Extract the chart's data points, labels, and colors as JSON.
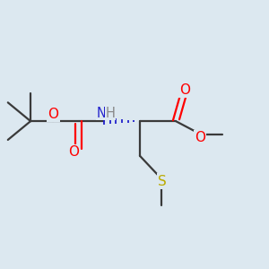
{
  "bg_color": "#dce8f0",
  "bond_color": "#3a3a3a",
  "O_color": "#ff0000",
  "N_color": "#2222cc",
  "S_color": "#bbaa00",
  "C_color": "#3a3a3a",
  "H_color": "#888888",
  "bond_width": 1.6,
  "font_size": 10,
  "figsize": [
    3.0,
    3.0
  ],
  "dpi": 100,
  "xlim": [
    0,
    10
  ],
  "ylim": [
    0,
    10
  ]
}
